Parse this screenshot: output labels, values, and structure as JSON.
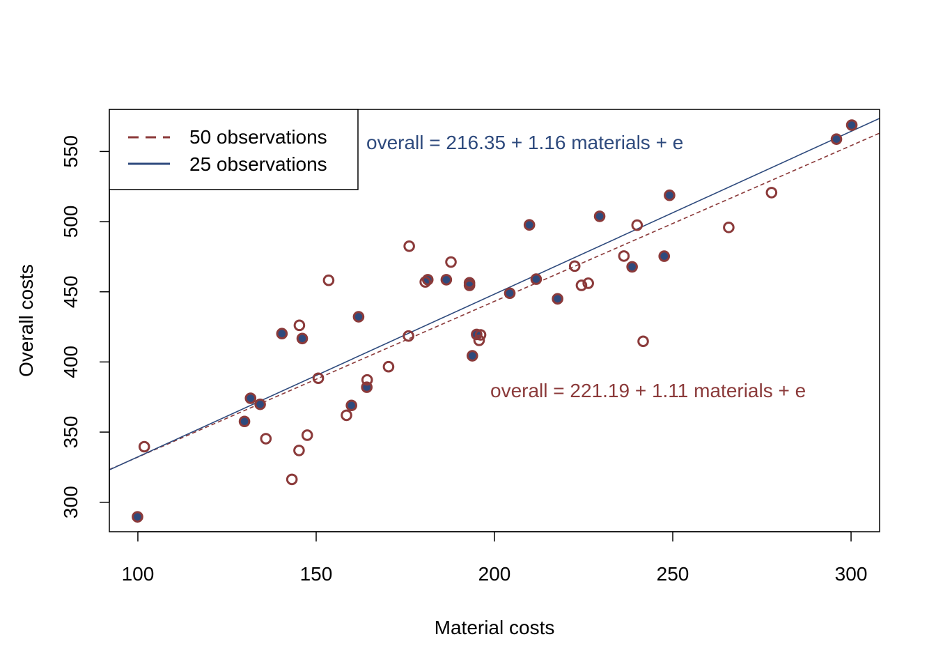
{
  "chart_data": {
    "type": "scatter",
    "xlabel": "Material costs",
    "ylabel": "Overall costs",
    "xlim": [
      92,
      308
    ],
    "ylim": [
      279,
      580
    ],
    "x_ticks": [
      100,
      150,
      200,
      250,
      300
    ],
    "y_ticks": [
      300,
      350,
      400,
      450,
      500,
      550
    ],
    "grid": false,
    "legend": {
      "placement": "top-left",
      "entries": [
        {
          "label": "50 observations",
          "line_style": "dashed",
          "color": "#8B3A3A"
        },
        {
          "label": "25 observations",
          "line_style": "solid",
          "color": "#2E4A7D"
        }
      ]
    },
    "annotations": [
      {
        "text": "overall = 216.35 + 1.16 materials + e",
        "color": "#2E4A7D"
      },
      {
        "text": "overall = 221.19 + 1.11 materials + e",
        "color": "#8B3A3A"
      }
    ],
    "regression_lines": [
      {
        "name": "50 observations",
        "intercept": 221.19,
        "slope": 1.11,
        "style": "dashed",
        "color": "#8B3A3A"
      },
      {
        "name": "25 observations",
        "intercept": 216.35,
        "slope": 1.16,
        "style": "solid",
        "color": "#2E4A7D"
      }
    ],
    "series": [
      {
        "name": "50 observations",
        "marker": "open-circle",
        "color": "#8B3A3A",
        "points": [
          {
            "x": 99.9,
            "y": 289.6
          },
          {
            "x": 101.8,
            "y": 339.6
          },
          {
            "x": 129.9,
            "y": 357.6
          },
          {
            "x": 131.6,
            "y": 374.1
          },
          {
            "x": 134.3,
            "y": 369.8
          },
          {
            "x": 135.9,
            "y": 345.3
          },
          {
            "x": 140.4,
            "y": 420.2
          },
          {
            "x": 143.2,
            "y": 316.3
          },
          {
            "x": 145.2,
            "y": 336.9
          },
          {
            "x": 145.3,
            "y": 426.1
          },
          {
            "x": 146.1,
            "y": 416.7
          },
          {
            "x": 147.5,
            "y": 347.8
          },
          {
            "x": 150.6,
            "y": 388.4
          },
          {
            "x": 153.5,
            "y": 458.2
          },
          {
            "x": 158.5,
            "y": 362.0
          },
          {
            "x": 159.9,
            "y": 369.0
          },
          {
            "x": 161.9,
            "y": 432.2
          },
          {
            "x": 164.3,
            "y": 387.2
          },
          {
            "x": 164.2,
            "y": 382.0
          },
          {
            "x": 170.3,
            "y": 396.6
          },
          {
            "x": 176.1,
            "y": 482.5
          },
          {
            "x": 175.9,
            "y": 418.5
          },
          {
            "x": 180.6,
            "y": 457.0
          },
          {
            "x": 181.3,
            "y": 458.6
          },
          {
            "x": 186.5,
            "y": 458.6
          },
          {
            "x": 187.8,
            "y": 471.2
          },
          {
            "x": 193.0,
            "y": 456.4
          },
          {
            "x": 193.0,
            "y": 454.6
          },
          {
            "x": 193.8,
            "y": 404.4
          },
          {
            "x": 195.0,
            "y": 419.6
          },
          {
            "x": 196.1,
            "y": 419.3
          },
          {
            "x": 195.7,
            "y": 415.4
          },
          {
            "x": 204.3,
            "y": 449.0
          },
          {
            "x": 209.8,
            "y": 497.7
          },
          {
            "x": 211.7,
            "y": 459.0
          },
          {
            "x": 217.7,
            "y": 445.0
          },
          {
            "x": 222.5,
            "y": 468.3
          },
          {
            "x": 224.4,
            "y": 454.6
          },
          {
            "x": 226.3,
            "y": 456.1
          },
          {
            "x": 229.5,
            "y": 503.8
          },
          {
            "x": 236.3,
            "y": 475.5
          },
          {
            "x": 238.6,
            "y": 467.8
          },
          {
            "x": 240.0,
            "y": 497.5
          },
          {
            "x": 241.7,
            "y": 414.7
          },
          {
            "x": 247.6,
            "y": 475.4
          },
          {
            "x": 249.1,
            "y": 518.8
          },
          {
            "x": 265.7,
            "y": 495.9
          },
          {
            "x": 277.7,
            "y": 520.7
          },
          {
            "x": 295.9,
            "y": 558.8
          },
          {
            "x": 300.2,
            "y": 568.8
          }
        ]
      },
      {
        "name": "25 observations",
        "marker": "filled-circle",
        "color": "#2E4A7D",
        "points": [
          {
            "x": 99.9,
            "y": 289.6
          },
          {
            "x": 129.9,
            "y": 357.6
          },
          {
            "x": 131.6,
            "y": 374.1
          },
          {
            "x": 134.3,
            "y": 369.8
          },
          {
            "x": 140.4,
            "y": 420.2
          },
          {
            "x": 146.1,
            "y": 416.7
          },
          {
            "x": 159.9,
            "y": 369.0
          },
          {
            "x": 161.9,
            "y": 432.2
          },
          {
            "x": 164.2,
            "y": 382.0
          },
          {
            "x": 181.3,
            "y": 458.6
          },
          {
            "x": 186.5,
            "y": 458.6
          },
          {
            "x": 193.0,
            "y": 456.4
          },
          {
            "x": 193.0,
            "y": 454.6
          },
          {
            "x": 193.8,
            "y": 404.4
          },
          {
            "x": 195.0,
            "y": 419.6
          },
          {
            "x": 204.3,
            "y": 449.0
          },
          {
            "x": 209.8,
            "y": 497.7
          },
          {
            "x": 211.7,
            "y": 459.0
          },
          {
            "x": 217.7,
            "y": 445.0
          },
          {
            "x": 229.5,
            "y": 503.8
          },
          {
            "x": 238.6,
            "y": 467.8
          },
          {
            "x": 247.6,
            "y": 475.4
          },
          {
            "x": 249.1,
            "y": 518.8
          },
          {
            "x": 295.9,
            "y": 558.8
          },
          {
            "x": 300.2,
            "y": 568.8
          }
        ]
      }
    ]
  }
}
